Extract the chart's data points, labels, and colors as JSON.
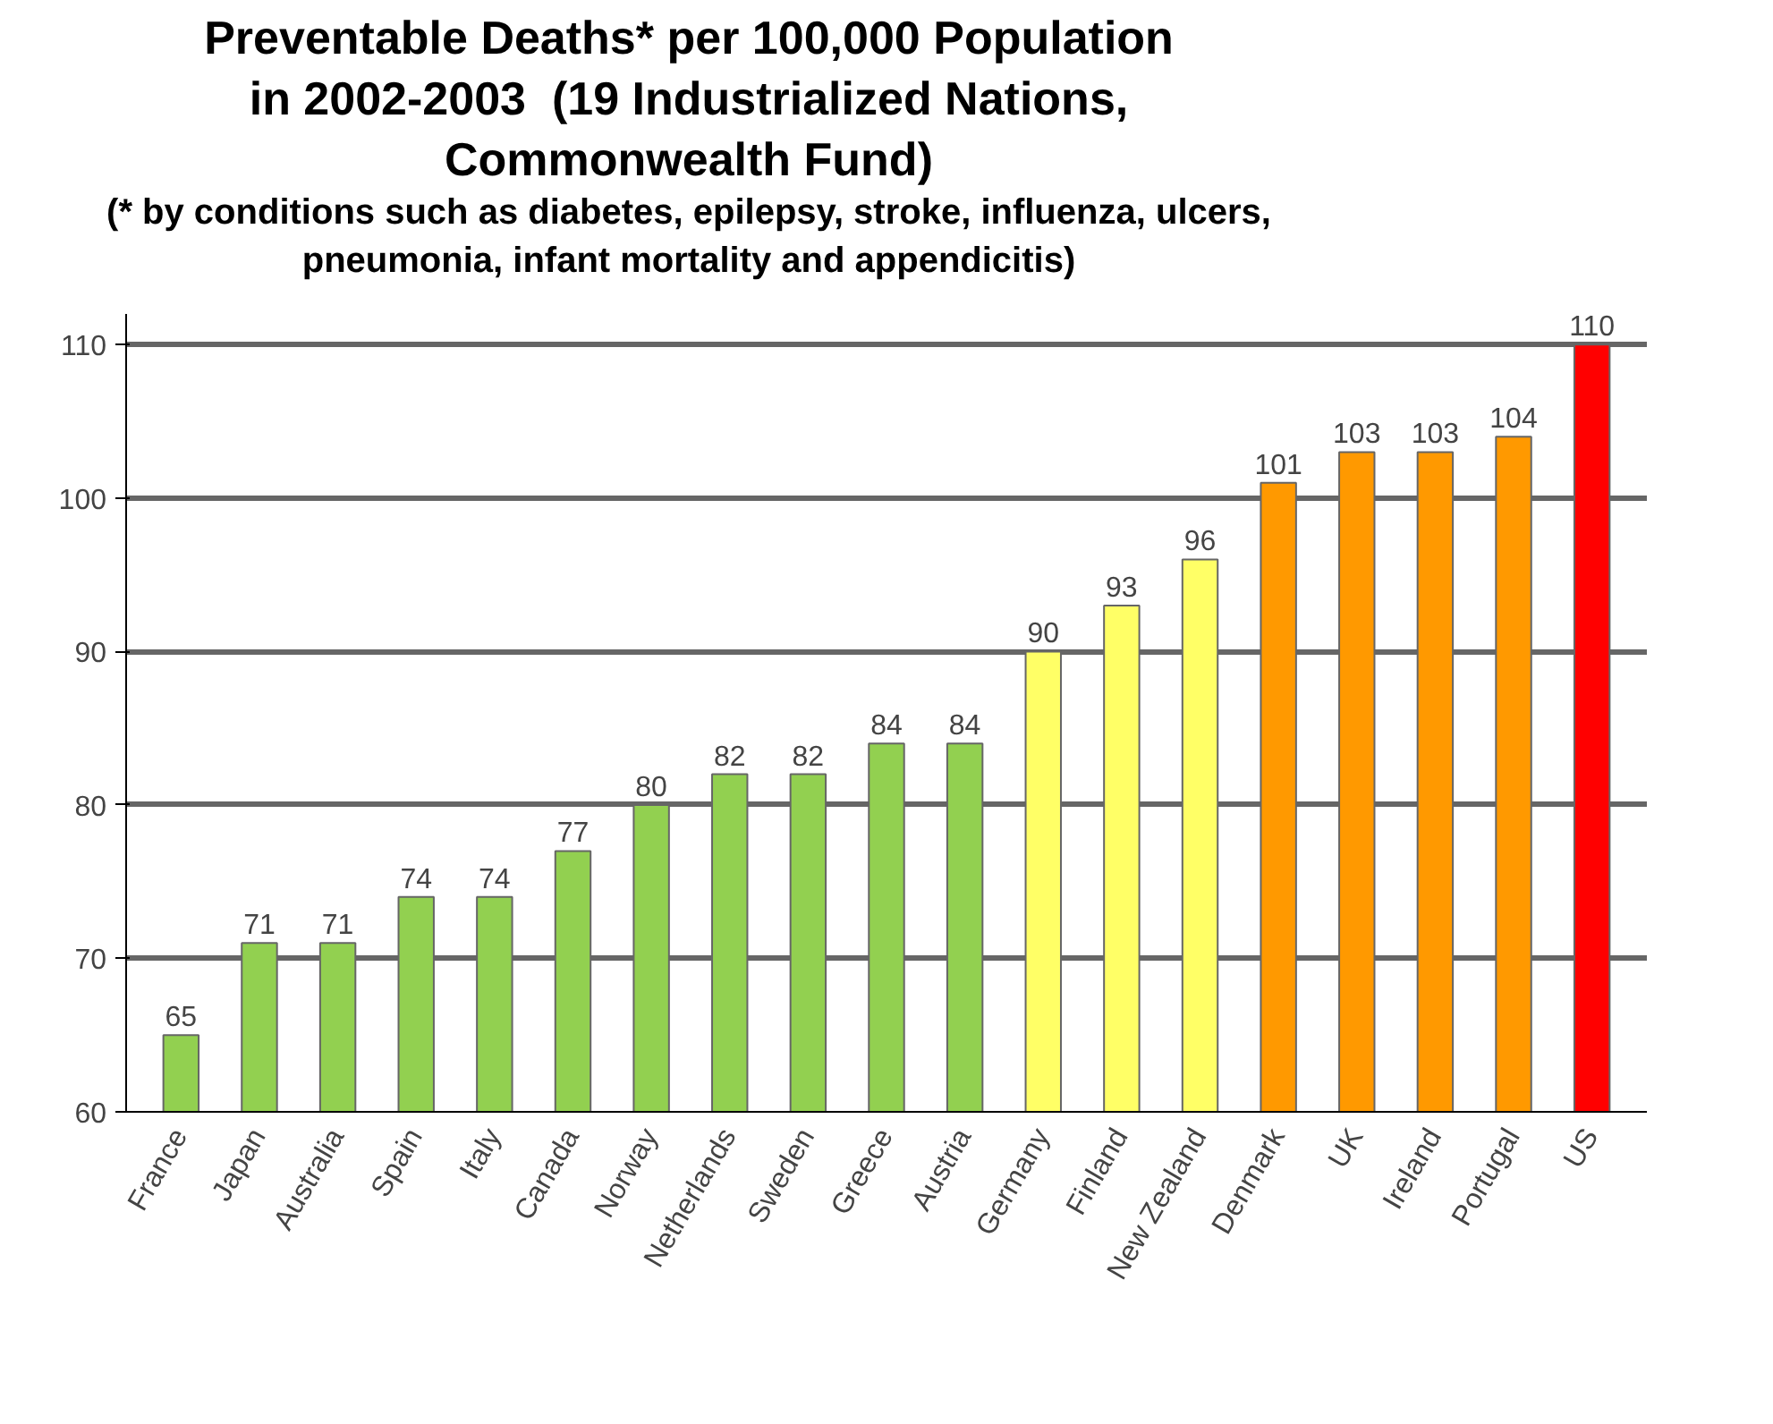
{
  "chart_data": {
    "type": "bar",
    "title": "Preventable Deaths* per 100,000 Population in 2002-2003  (19 Industrialized Nations, Commonwealth Fund)",
    "subtitle": "(* by conditions such as diabetes, epilepsy, stroke, influenza, ulcers, pneumonia, infant mortality and appendicitis)",
    "categories": [
      "France",
      "Japan",
      "Australia",
      "Spain",
      "Italy",
      "Canada",
      "Norway",
      "Netherlands",
      "Sweden",
      "Greece",
      "Austria",
      "Germany",
      "Finland",
      "New Zealand",
      "Denmark",
      "UK",
      "Ireland",
      "Portugal",
      "US"
    ],
    "values": [
      65,
      71,
      71,
      74,
      74,
      77,
      80,
      82,
      82,
      84,
      84,
      90,
      93,
      96,
      101,
      103,
      103,
      104,
      110
    ],
    "colors": [
      "#92d050",
      "#92d050",
      "#92d050",
      "#92d050",
      "#92d050",
      "#92d050",
      "#92d050",
      "#92d050",
      "#92d050",
      "#92d050",
      "#92d050",
      "#ffff66",
      "#ffff66",
      "#ffff66",
      "#ff9900",
      "#ff9900",
      "#ff9900",
      "#ff9900",
      "#ff0000"
    ],
    "ylim": [
      60,
      112
    ],
    "yticks": [
      60,
      70,
      80,
      90,
      100,
      110
    ],
    "grid": "y",
    "data_labels": true
  }
}
